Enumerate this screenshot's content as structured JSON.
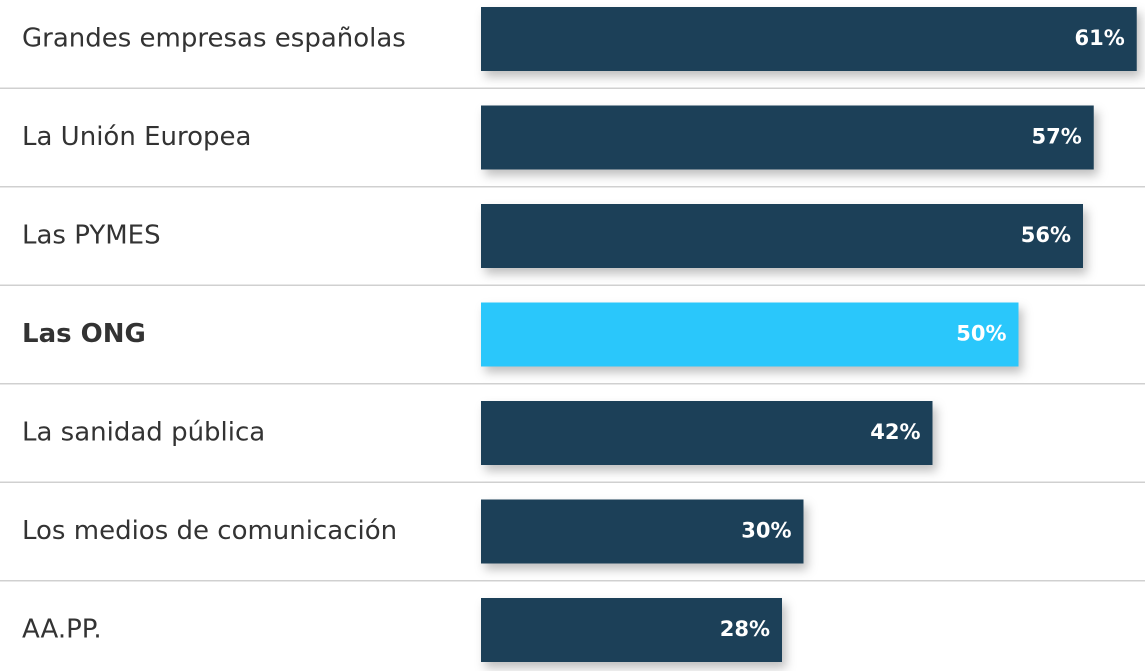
{
  "chart_data": {
    "type": "bar",
    "orientation": "horizontal",
    "categories": [
      "Grandes empresas españolas",
      "La Unión Europea",
      "Las PYMES",
      "Las ONG",
      "La sanidad pública",
      "Los medios de comunicación",
      "AA.PP."
    ],
    "values": [
      61,
      57,
      56,
      50,
      42,
      30,
      28
    ],
    "value_labels": [
      "61%",
      "57%",
      "56%",
      "50%",
      "42%",
      "30%",
      "28%"
    ],
    "color": "#1f4159",
    "colors": [
      "#1f4159",
      "#1f4159",
      "#1f4159",
      "#2bc7fb",
      "#1f4159",
      "#1f4159",
      "#1f4159"
    ],
    "xlim": [
      0,
      100
    ]
  }
}
